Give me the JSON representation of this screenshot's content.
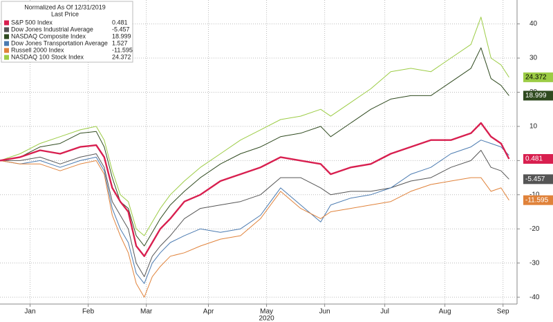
{
  "chart_data": {
    "type": "line",
    "legend_title": "Normalized As Of 12/31/2019",
    "legend_subtitle": "Last Price",
    "legend_position": "top-left",
    "x_sublabel": "2020",
    "grid": true,
    "xlim": [
      0,
      258
    ],
    "xticks": [
      {
        "value": 15,
        "label": "Jan"
      },
      {
        "value": 44,
        "label": "Feb"
      },
      {
        "value": 73,
        "label": "Mar"
      },
      {
        "value": 104,
        "label": "Apr"
      },
      {
        "value": 133,
        "label": "May"
      },
      {
        "value": 162,
        "label": "Jun"
      },
      {
        "value": 192,
        "label": "Jul"
      },
      {
        "value": 222,
        "label": "Aug"
      },
      {
        "value": 251,
        "label": "Sep"
      }
    ],
    "ylim": [
      -42,
      47
    ],
    "yticks": [
      -40,
      -30,
      -20,
      -10,
      0,
      10,
      20,
      30,
      40
    ],
    "x": [
      0,
      10,
      20,
      30,
      40,
      48,
      52,
      56,
      60,
      64,
      68,
      72,
      76,
      80,
      85,
      92,
      100,
      110,
      120,
      130,
      140,
      150,
      160,
      165,
      175,
      185,
      195,
      205,
      215,
      225,
      235,
      240,
      245,
      250,
      254
    ],
    "series": [
      {
        "name": "S&P 500 Index",
        "last_price": 0.481,
        "color": "#d81f4f",
        "width": 2.4,
        "tag": true,
        "values": [
          0,
          1,
          3,
          2,
          4,
          4.5,
          1,
          -8,
          -12,
          -15,
          -25,
          -28,
          -24,
          -20,
          -17,
          -12,
          -10,
          -6,
          -4,
          -2,
          1,
          0,
          -1,
          -4,
          -2,
          -1,
          2,
          4,
          6,
          6,
          8,
          11,
          7,
          5,
          0.481
        ]
      },
      {
        "name": "Dow Jones Industrial Average",
        "last_price": -5.457,
        "color": "#555555",
        "width": 1,
        "tag": true,
        "values": [
          0,
          0,
          1,
          -1,
          1,
          2,
          -2,
          -12,
          -16,
          -20,
          -30,
          -34,
          -28,
          -25,
          -22,
          -17,
          -14,
          -13,
          -12,
          -10,
          -5,
          -5,
          -8,
          -10,
          -9,
          -9,
          -8,
          -6,
          -5,
          -2,
          0,
          3,
          -2,
          -3,
          -5.457
        ]
      },
      {
        "name": "NASDAQ Composite Index",
        "last_price": 18.999,
        "color": "#2f4a1f",
        "width": 1,
        "tag": true,
        "values": [
          0,
          1,
          4,
          5,
          8,
          8.5,
          4,
          -5,
          -12,
          -14,
          -22,
          -25,
          -21,
          -17,
          -13,
          -9,
          -5,
          -1,
          2,
          4,
          7,
          8,
          10,
          7,
          11,
          15,
          18,
          19,
          19,
          23,
          27,
          33,
          24,
          22,
          18.999
        ]
      },
      {
        "name": "Dow Jones Transportation Average",
        "last_price": 1.527,
        "color": "#4a7ab0",
        "width": 1,
        "tag": false,
        "values": [
          0,
          -1,
          0,
          -2,
          0,
          1,
          -3,
          -14,
          -20,
          -24,
          -33,
          -36,
          -30,
          -27,
          -24,
          -22,
          -20,
          -21,
          -20,
          -16,
          -8,
          -13,
          -18,
          -13,
          -11,
          -10,
          -8,
          -4,
          -2,
          2,
          4,
          6,
          5,
          4,
          1.527
        ]
      },
      {
        "name": "Russell 2000 Index",
        "last_price": -11.595,
        "color": "#e0823a",
        "width": 1,
        "tag": true,
        "values": [
          0,
          -1,
          -1,
          -3,
          -1,
          0,
          -4,
          -16,
          -22,
          -27,
          -36,
          -40,
          -34,
          -31,
          -28,
          -27,
          -25,
          -23,
          -22,
          -17,
          -9,
          -14,
          -17,
          -15,
          -14,
          -13,
          -12,
          -9,
          -7,
          -6,
          -5,
          -5,
          -9,
          -8,
          -11.595
        ]
      },
      {
        "name": "NASDAQ 100 Stock Index",
        "last_price": 24.372,
        "color": "#9ccc45",
        "width": 1,
        "tag": true,
        "values": [
          0,
          2,
          5,
          7,
          9,
          10,
          6,
          -3,
          -10,
          -12,
          -20,
          -22,
          -18,
          -14,
          -10,
          -6,
          -2,
          2,
          6,
          9,
          12,
          13,
          15,
          13,
          17,
          21,
          26,
          27,
          26,
          30,
          34,
          42,
          30,
          28,
          24.372
        ]
      }
    ]
  }
}
